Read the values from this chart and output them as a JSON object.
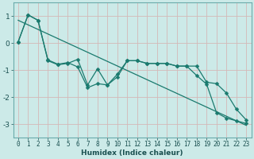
{
  "title": "",
  "xlabel": "Humidex (Indice chaleur)",
  "ylabel": "",
  "bg_color": "#cceae8",
  "line_color": "#1a7a6e",
  "grid_color": "#d4b8b8",
  "xlim": [
    -0.5,
    23.5
  ],
  "ylim": [
    -3.5,
    1.5
  ],
  "yticks": [
    -3,
    -2,
    -1,
    0,
    1
  ],
  "xticks": [
    0,
    1,
    2,
    3,
    4,
    5,
    6,
    7,
    8,
    9,
    10,
    11,
    12,
    13,
    14,
    15,
    16,
    17,
    18,
    19,
    20,
    21,
    22,
    23
  ],
  "line1_x": [
    0,
    1,
    2,
    3,
    4,
    5,
    6,
    7,
    8,
    9,
    10,
    11,
    12,
    13,
    14,
    15,
    16,
    17,
    18,
    19,
    20,
    21,
    22,
    23
  ],
  "line1_y": [
    0.05,
    1.05,
    0.85,
    -0.65,
    -0.8,
    -0.75,
    -0.6,
    -1.55,
    -0.95,
    -1.55,
    -1.15,
    -0.65,
    -0.65,
    -0.75,
    -0.75,
    -0.75,
    -0.85,
    -0.85,
    -0.85,
    -1.45,
    -1.5,
    -1.85,
    -2.45,
    -2.85
  ],
  "line2_x": [
    0,
    1,
    2,
    3,
    4,
    5,
    6,
    7,
    8,
    9,
    10,
    11,
    12,
    13,
    14,
    15,
    16,
    17,
    18,
    19,
    20,
    21,
    22,
    23
  ],
  "line2_y": [
    0.05,
    1.05,
    0.85,
    -0.62,
    -0.78,
    -0.72,
    -0.88,
    -1.65,
    -1.5,
    -1.55,
    -1.25,
    -0.65,
    -0.65,
    -0.75,
    -0.75,
    -0.75,
    -0.85,
    -0.85,
    -1.2,
    -1.52,
    -2.58,
    -2.78,
    -2.88,
    -2.98
  ],
  "trend_x": [
    0,
    23
  ],
  "trend_y": [
    0.85,
    -3.05
  ],
  "marker_size": 2.5,
  "line_width": 0.9,
  "xlabel_fontsize": 6.5,
  "tick_fontsize": 5.5,
  "ytick_fontsize": 6.5
}
